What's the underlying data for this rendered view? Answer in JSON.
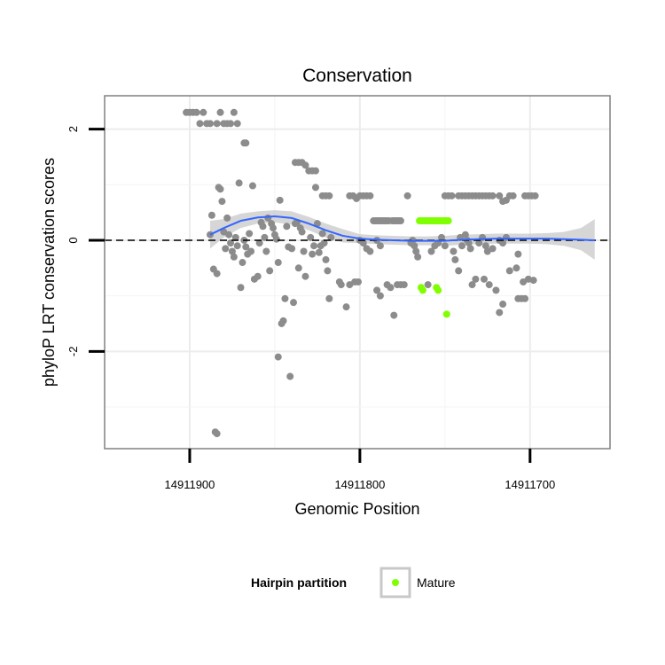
{
  "chart_data": {
    "type": "scatter",
    "title": "Conservation",
    "xlabel": "Genomic Position",
    "ylabel": "phyloP LRT conservation scores",
    "x_reversed": true,
    "xlim": [
      14911950,
      14911653
    ],
    "ylim": [
      -3.75,
      2.6
    ],
    "x_ticks": [
      {
        "value": 14911900,
        "label": "14911900"
      },
      {
        "value": 14911800,
        "label": "14911800"
      },
      {
        "value": 14911700,
        "label": "14911700"
      }
    ],
    "y_ticks": [
      {
        "value": 2,
        "label": "2"
      },
      {
        "value": 0,
        "label": "0"
      },
      {
        "value": -2,
        "label": "-2"
      }
    ],
    "grid": true,
    "reference_line": {
      "y": 0,
      "style": "dashed",
      "color": "#000000"
    },
    "colors": {
      "other_points": "#8c8c8c",
      "mature_points": "#7fff00",
      "smooth_line": "#3366ff",
      "smooth_band": "#c8c8c8",
      "panel_border": "#808080"
    },
    "legend": {
      "title": "Hairpin partition",
      "placement": "bottom",
      "entries": [
        {
          "label": "Mature",
          "color": "#7fff00"
        }
      ]
    },
    "series": [
      {
        "color": "#8c8c8c",
        "points": [
          [
            14911888,
            0.1
          ],
          [
            14911887,
            0.45
          ],
          [
            14911886,
            -0.52
          ],
          [
            14911884,
            -0.6
          ],
          [
            14911885,
            -3.45
          ],
          [
            14911884,
            -3.48
          ],
          [
            14911883,
            0.95
          ],
          [
            14911882,
            0.92
          ],
          [
            14911881,
            0.7
          ],
          [
            14911880,
            0.15
          ],
          [
            14911879,
            -0.15
          ],
          [
            14911878,
            0.4
          ],
          [
            14911877,
            0.1
          ],
          [
            14911876,
            -0.05
          ],
          [
            14911875,
            -0.2
          ],
          [
            14911874,
            -0.3
          ],
          [
            14911873,
            0.05
          ],
          [
            14911872,
            -0.1
          ],
          [
            14911871,
            1.03
          ],
          [
            14911870,
            -0.85
          ],
          [
            14911869,
            -0.4
          ],
          [
            14911868,
            0.0
          ],
          [
            14911867,
            -0.12
          ],
          [
            14911866,
            -0.25
          ],
          [
            14911865,
            0.12
          ],
          [
            14911864,
            -0.2
          ],
          [
            14911863,
            0.98
          ],
          [
            14911862,
            -0.7
          ],
          [
            14911860,
            -0.65
          ],
          [
            14911859,
            -0.05
          ],
          [
            14911858,
            0.32
          ],
          [
            14911857,
            0.25
          ],
          [
            14911856,
            0.05
          ],
          [
            14911855,
            -0.2
          ],
          [
            14911854,
            0.4
          ],
          [
            14911853,
            -0.55
          ],
          [
            14911852,
            0.3
          ],
          [
            14911851,
            0.22
          ],
          [
            14911850,
            0.1
          ],
          [
            14911849,
            0.02
          ],
          [
            14911848,
            -0.4
          ],
          [
            14911847,
            0.72
          ],
          [
            14911846,
            -1.5
          ],
          [
            14911845,
            -1.45
          ],
          [
            14911844,
            -1.05
          ],
          [
            14911843,
            0.25
          ],
          [
            14911842,
            -0.12
          ],
          [
            14911841,
            -2.45
          ],
          [
            14911840,
            -0.15
          ],
          [
            14911839,
            -1.12
          ],
          [
            14911838,
            0.3
          ],
          [
            14911837,
            0.32
          ],
          [
            14911836,
            -0.5
          ],
          [
            14911835,
            0.22
          ],
          [
            14911834,
            0.15
          ],
          [
            14911833,
            -0.2
          ],
          [
            14911832,
            -0.65
          ],
          [
            14911829,
            0.05
          ],
          [
            14911828,
            -0.25
          ],
          [
            14911827,
            -0.1
          ],
          [
            14911826,
            0.95
          ],
          [
            14911825,
            0.3
          ],
          [
            14911824,
            -0.22
          ],
          [
            14911823,
            -0.1
          ],
          [
            14911822,
            0.12
          ],
          [
            14911821,
            -0.05
          ],
          [
            14911820,
            -0.35
          ],
          [
            14911819,
            -0.55
          ],
          [
            14911818,
            -1.05
          ],
          [
            14911817,
            0.05
          ],
          [
            14911848,
            -2.1
          ],
          [
            14911868,
            1.75
          ],
          [
            14911867,
            1.75
          ],
          [
            14911902,
            2.3
          ],
          [
            14911900,
            2.3
          ],
          [
            14911898,
            2.3
          ],
          [
            14911896,
            2.3
          ],
          [
            14911894,
            2.1
          ],
          [
            14911892,
            2.3
          ],
          [
            14911890,
            2.1
          ],
          [
            14911888,
            2.1
          ],
          [
            14911884,
            2.1
          ],
          [
            14911882,
            2.3
          ],
          [
            14911880,
            2.1
          ],
          [
            14911878,
            2.1
          ],
          [
            14911876,
            2.1
          ],
          [
            14911874,
            2.3
          ],
          [
            14911872,
            2.1
          ],
          [
            14911838,
            1.4
          ],
          [
            14911836,
            1.4
          ],
          [
            14911834,
            1.4
          ],
          [
            14911832,
            1.35
          ],
          [
            14911830,
            1.25
          ],
          [
            14911828,
            1.25
          ],
          [
            14911826,
            1.25
          ],
          [
            14911822,
            0.8
          ],
          [
            14911820,
            0.8
          ],
          [
            14911818,
            0.8
          ],
          [
            14911806,
            0.8
          ],
          [
            14911804,
            0.8
          ],
          [
            14911802,
            0.75
          ],
          [
            14911800,
            0.8
          ],
          [
            14911798,
            0.8
          ],
          [
            14911796,
            0.8
          ],
          [
            14911794,
            0.8
          ],
          [
            14911812,
            -0.75
          ],
          [
            14911811,
            -0.8
          ],
          [
            14911808,
            -1.2
          ],
          [
            14911806,
            -0.8
          ],
          [
            14911803,
            -0.75
          ],
          [
            14911801,
            -0.75
          ],
          [
            14911800,
            0.0
          ],
          [
            14911798,
            -0.05
          ],
          [
            14911796,
            -0.15
          ],
          [
            14911794,
            -0.2
          ],
          [
            14911790,
            0.0
          ],
          [
            14911788,
            -0.1
          ],
          [
            14911792,
            0.35
          ],
          [
            14911791,
            0.35
          ],
          [
            14911790,
            0.35
          ],
          [
            14911789,
            0.35
          ],
          [
            14911788,
            0.35
          ],
          [
            14911787,
            0.35
          ],
          [
            14911786,
            0.35
          ],
          [
            14911785,
            0.35
          ],
          [
            14911784,
            0.35
          ],
          [
            14911783,
            0.35
          ],
          [
            14911781,
            0.35
          ],
          [
            14911780,
            0.35
          ],
          [
            14911779,
            0.35
          ],
          [
            14911778,
            0.35
          ],
          [
            14911777,
            0.35
          ],
          [
            14911776,
            0.35
          ],
          [
            14911784,
            -0.8
          ],
          [
            14911782,
            -0.85
          ],
          [
            14911780,
            -1.35
          ],
          [
            14911778,
            -0.8
          ],
          [
            14911776,
            -0.8
          ],
          [
            14911774,
            -0.8
          ],
          [
            14911790,
            -0.9
          ],
          [
            14911788,
            -1.0
          ],
          [
            14911772,
            0.8
          ],
          [
            14911770,
            -0.05
          ],
          [
            14911769,
            0.0
          ],
          [
            14911768,
            -0.1
          ],
          [
            14911767,
            -0.2
          ],
          [
            14911766,
            -0.3
          ],
          [
            14911760,
            -0.8
          ],
          [
            14911758,
            -0.2
          ],
          [
            14911756,
            -0.1
          ],
          [
            14911754,
            -0.05
          ],
          [
            14911752,
            0.05
          ],
          [
            14911750,
            -0.1
          ],
          [
            14911750,
            0.8
          ],
          [
            14911748,
            0.8
          ],
          [
            14911746,
            0.8
          ],
          [
            14911742,
            0.8
          ],
          [
            14911740,
            0.8
          ],
          [
            14911738,
            0.8
          ],
          [
            14911736,
            0.8
          ],
          [
            14911734,
            0.8
          ],
          [
            14911732,
            0.8
          ],
          [
            14911730,
            0.8
          ],
          [
            14911728,
            0.8
          ],
          [
            14911726,
            0.8
          ],
          [
            14911724,
            0.8
          ],
          [
            14911722,
            0.8
          ],
          [
            14911745,
            -0.2
          ],
          [
            14911744,
            -0.35
          ],
          [
            14911742,
            -0.55
          ],
          [
            14911741,
            0.05
          ],
          [
            14911740,
            -0.1
          ],
          [
            14911738,
            0.1
          ],
          [
            14911737,
            0.0
          ],
          [
            14911736,
            -0.05
          ],
          [
            14911735,
            -0.15
          ],
          [
            14911734,
            -0.8
          ],
          [
            14911732,
            -0.7
          ],
          [
            14911730,
            -0.05
          ],
          [
            14911728,
            0.05
          ],
          [
            14911727,
            -0.7
          ],
          [
            14911726,
            -0.1
          ],
          [
            14911725,
            -0.2
          ],
          [
            14911724,
            -0.8
          ],
          [
            14911722,
            -0.15
          ],
          [
            14911718,
            0.0
          ],
          [
            14911716,
            -0.05
          ],
          [
            14911714,
            0.05
          ],
          [
            14911712,
            -0.55
          ],
          [
            14911716,
            0.7
          ],
          [
            14911714,
            0.72
          ],
          [
            14911712,
            0.8
          ],
          [
            14911710,
            0.8
          ],
          [
            14911707,
            -1.05
          ],
          [
            14911705,
            -1.05
          ],
          [
            14911703,
            -1.05
          ],
          [
            14911703,
            0.8
          ],
          [
            14911701,
            0.8
          ],
          [
            14911699,
            0.8
          ],
          [
            14911697,
            0.8
          ],
          [
            14911704,
            -0.75
          ],
          [
            14911701,
            -0.7
          ],
          [
            14911698,
            -0.72
          ],
          [
            14911708,
            -0.5
          ],
          [
            14911707,
            -0.25
          ],
          [
            14911718,
            0.8
          ],
          [
            14911720,
            -0.9
          ],
          [
            14911718,
            -1.3
          ],
          [
            14911716,
            -1.15
          ]
        ]
      },
      {
        "name": "Mature",
        "color": "#7fff00",
        "points": [
          [
            14911765,
            0.35
          ],
          [
            14911764,
            0.35
          ],
          [
            14911763,
            0.35
          ],
          [
            14911762,
            0.35
          ],
          [
            14911761,
            0.35
          ],
          [
            14911760,
            0.35
          ],
          [
            14911759,
            0.35
          ],
          [
            14911758,
            0.35
          ],
          [
            14911757,
            0.35
          ],
          [
            14911756,
            0.35
          ],
          [
            14911755,
            0.35
          ],
          [
            14911754,
            0.35
          ],
          [
            14911753,
            0.35
          ],
          [
            14911752,
            0.35
          ],
          [
            14911751,
            0.35
          ],
          [
            14911750,
            0.35
          ],
          [
            14911749,
            0.35
          ],
          [
            14911748,
            0.35
          ],
          [
            14911764,
            -0.85
          ],
          [
            14911763,
            -0.9
          ],
          [
            14911755,
            -0.85
          ],
          [
            14911754,
            -0.9
          ],
          [
            14911749,
            -1.33
          ]
        ]
      }
    ],
    "smooth": {
      "x": [
        14911888,
        14911880,
        14911870,
        14911860,
        14911850,
        14911840,
        14911830,
        14911820,
        14911810,
        14911800,
        14911790,
        14911780,
        14911770,
        14911760,
        14911750,
        14911740,
        14911730,
        14911720,
        14911710,
        14911700,
        14911690,
        14911680,
        14911670,
        14911662
      ],
      "y": [
        0.1,
        0.22,
        0.35,
        0.41,
        0.43,
        0.4,
        0.3,
        0.18,
        0.08,
        0.03,
        0.01,
        0.0,
        -0.01,
        -0.01,
        -0.01,
        0.01,
        0.02,
        0.03,
        0.03,
        0.03,
        0.03,
        0.02,
        0.01,
        0.0
      ],
      "lower": [
        -0.15,
        0.05,
        0.22,
        0.3,
        0.32,
        0.28,
        0.18,
        0.05,
        -0.04,
        -0.05,
        -0.07,
        -0.08,
        -0.09,
        -0.09,
        -0.1,
        -0.08,
        -0.07,
        -0.06,
        -0.06,
        -0.06,
        -0.07,
        -0.1,
        -0.18,
        -0.35
      ],
      "upper": [
        0.35,
        0.38,
        0.48,
        0.52,
        0.54,
        0.52,
        0.42,
        0.3,
        0.2,
        0.11,
        0.09,
        0.08,
        0.07,
        0.07,
        0.08,
        0.1,
        0.11,
        0.12,
        0.12,
        0.12,
        0.13,
        0.15,
        0.22,
        0.38
      ]
    }
  }
}
